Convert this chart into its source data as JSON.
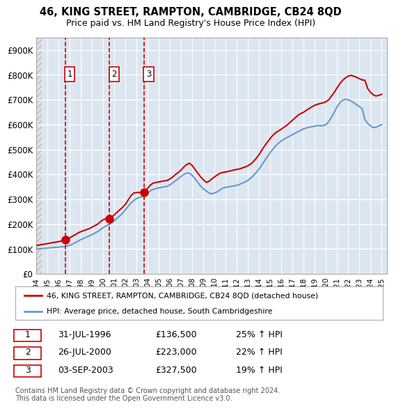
{
  "title": "46, KING STREET, RAMPTON, CAMBRIDGE, CB24 8QD",
  "subtitle": "Price paid vs. HM Land Registry's House Price Index (HPI)",
  "ylim": [
    0,
    950000
  ],
  "yticks": [
    0,
    100000,
    200000,
    300000,
    400000,
    500000,
    600000,
    700000,
    800000,
    900000
  ],
  "ytick_labels": [
    "£0",
    "£100K",
    "£200K",
    "£300K",
    "£400K",
    "£500K",
    "£600K",
    "£700K",
    "£800K",
    "£900K"
  ],
  "xlim_start": 1994.0,
  "xlim_end": 2025.5,
  "sale_dates": [
    1996.58,
    2000.57,
    2003.67
  ],
  "sale_prices": [
    136500,
    223000,
    327500
  ],
  "sale_labels": [
    "1",
    "2",
    "3"
  ],
  "sale_info": [
    {
      "label": "1",
      "date": "31-JUL-1996",
      "price": "£136,500",
      "hpi": "25% ↑ HPI"
    },
    {
      "label": "2",
      "date": "26-JUL-2000",
      "price": "£223,000",
      "hpi": "22% ↑ HPI"
    },
    {
      "label": "3",
      "date": "03-SEP-2003",
      "price": "£327,500",
      "hpi": "19% ↑ HPI"
    }
  ],
  "red_line_color": "#cc0000",
  "blue_line_color": "#6699cc",
  "dashed_line_color": "#cc0000",
  "bg_color": "#dce6f1",
  "grid_color": "#ffffff",
  "legend_line1": "46, KING STREET, RAMPTON, CAMBRIDGE, CB24 8QD (detached house)",
  "legend_line2": "HPI: Average price, detached house, South Cambridgeshire",
  "footnote": "Contains HM Land Registry data © Crown copyright and database right 2024.\nThis data is licensed under the Open Government Licence v3.0.",
  "series_x": [
    1994.0,
    1994.25,
    1994.5,
    1994.75,
    1995.0,
    1995.25,
    1995.5,
    1995.75,
    1996.0,
    1996.25,
    1996.5,
    1996.75,
    1997.0,
    1997.25,
    1997.5,
    1997.75,
    1998.0,
    1998.25,
    1998.5,
    1998.75,
    1999.0,
    1999.25,
    1999.5,
    1999.75,
    2000.0,
    2000.25,
    2000.5,
    2000.75,
    2001.0,
    2001.25,
    2001.5,
    2001.75,
    2002.0,
    2002.25,
    2002.5,
    2002.75,
    2003.0,
    2003.25,
    2003.5,
    2003.75,
    2004.0,
    2004.25,
    2004.5,
    2004.75,
    2005.0,
    2005.25,
    2005.5,
    2005.75,
    2006.0,
    2006.25,
    2006.5,
    2006.75,
    2007.0,
    2007.25,
    2007.5,
    2007.75,
    2008.0,
    2008.25,
    2008.5,
    2008.75,
    2009.0,
    2009.25,
    2009.5,
    2009.75,
    2010.0,
    2010.25,
    2010.5,
    2010.75,
    2011.0,
    2011.25,
    2011.5,
    2011.75,
    2012.0,
    2012.25,
    2012.5,
    2012.75,
    2013.0,
    2013.25,
    2013.5,
    2013.75,
    2014.0,
    2014.25,
    2014.5,
    2014.75,
    2015.0,
    2015.25,
    2015.5,
    2015.75,
    2016.0,
    2016.25,
    2016.5,
    2016.75,
    2017.0,
    2017.25,
    2017.5,
    2017.75,
    2018.0,
    2018.25,
    2018.5,
    2018.75,
    2019.0,
    2019.25,
    2019.5,
    2019.75,
    2020.0,
    2020.25,
    2020.5,
    2020.75,
    2021.0,
    2021.25,
    2021.5,
    2021.75,
    2022.0,
    2022.25,
    2022.5,
    2022.75,
    2023.0,
    2023.25,
    2023.5,
    2023.75,
    2024.0,
    2024.25,
    2024.5,
    2024.75,
    2025.0
  ],
  "red_series_y": [
    115000,
    116000,
    118000,
    120000,
    122000,
    124000,
    126000,
    128000,
    130000,
    132000,
    134000,
    140000,
    145000,
    152000,
    158000,
    165000,
    170000,
    174000,
    178000,
    182000,
    188000,
    194000,
    200000,
    210000,
    218000,
    222000,
    222500,
    228000,
    238000,
    248000,
    258000,
    268000,
    280000,
    298000,
    315000,
    325000,
    327000,
    327500,
    327500,
    330000,
    345000,
    358000,
    365000,
    368000,
    370000,
    372000,
    374000,
    376000,
    382000,
    390000,
    400000,
    408000,
    418000,
    430000,
    440000,
    445000,
    435000,
    420000,
    405000,
    390000,
    378000,
    368000,
    372000,
    382000,
    390000,
    398000,
    405000,
    408000,
    410000,
    412000,
    415000,
    418000,
    420000,
    422000,
    426000,
    430000,
    435000,
    442000,
    452000,
    465000,
    480000,
    498000,
    515000,
    530000,
    545000,
    558000,
    568000,
    575000,
    582000,
    590000,
    598000,
    608000,
    618000,
    628000,
    638000,
    645000,
    650000,
    658000,
    665000,
    672000,
    678000,
    682000,
    685000,
    688000,
    692000,
    700000,
    715000,
    730000,
    748000,
    765000,
    778000,
    788000,
    795000,
    798000,
    795000,
    790000,
    785000,
    780000,
    778000,
    745000,
    730000,
    720000,
    715000,
    718000,
    722000
  ],
  "blue_series_y": [
    100000,
    101000,
    102000,
    103000,
    104000,
    105000,
    106000,
    107000,
    108000,
    109000,
    110000,
    112000,
    115000,
    120000,
    126000,
    132000,
    138000,
    143000,
    148000,
    153000,
    158000,
    164000,
    170000,
    178000,
    186000,
    193000,
    198000,
    204000,
    214000,
    224000,
    234000,
    244000,
    258000,
    272000,
    285000,
    295000,
    303000,
    308000,
    310000,
    315000,
    325000,
    335000,
    340000,
    343000,
    346000,
    348000,
    350000,
    352000,
    358000,
    366000,
    375000,
    383000,
    392000,
    400000,
    405000,
    405000,
    396000,
    382000,
    368000,
    353000,
    342000,
    334000,
    325000,
    322000,
    326000,
    330000,
    338000,
    345000,
    348000,
    350000,
    352000,
    354000,
    356000,
    360000,
    365000,
    370000,
    376000,
    385000,
    396000,
    408000,
    422000,
    438000,
    455000,
    472000,
    488000,
    502000,
    515000,
    526000,
    535000,
    542000,
    548000,
    554000,
    560000,
    566000,
    572000,
    578000,
    583000,
    587000,
    590000,
    592000,
    594000,
    596000,
    596000,
    596000,
    600000,
    612000,
    630000,
    650000,
    672000,
    688000,
    698000,
    702000,
    700000,
    695000,
    688000,
    680000,
    672000,
    664000,
    620000,
    605000,
    595000,
    588000,
    590000,
    595000,
    600000
  ]
}
